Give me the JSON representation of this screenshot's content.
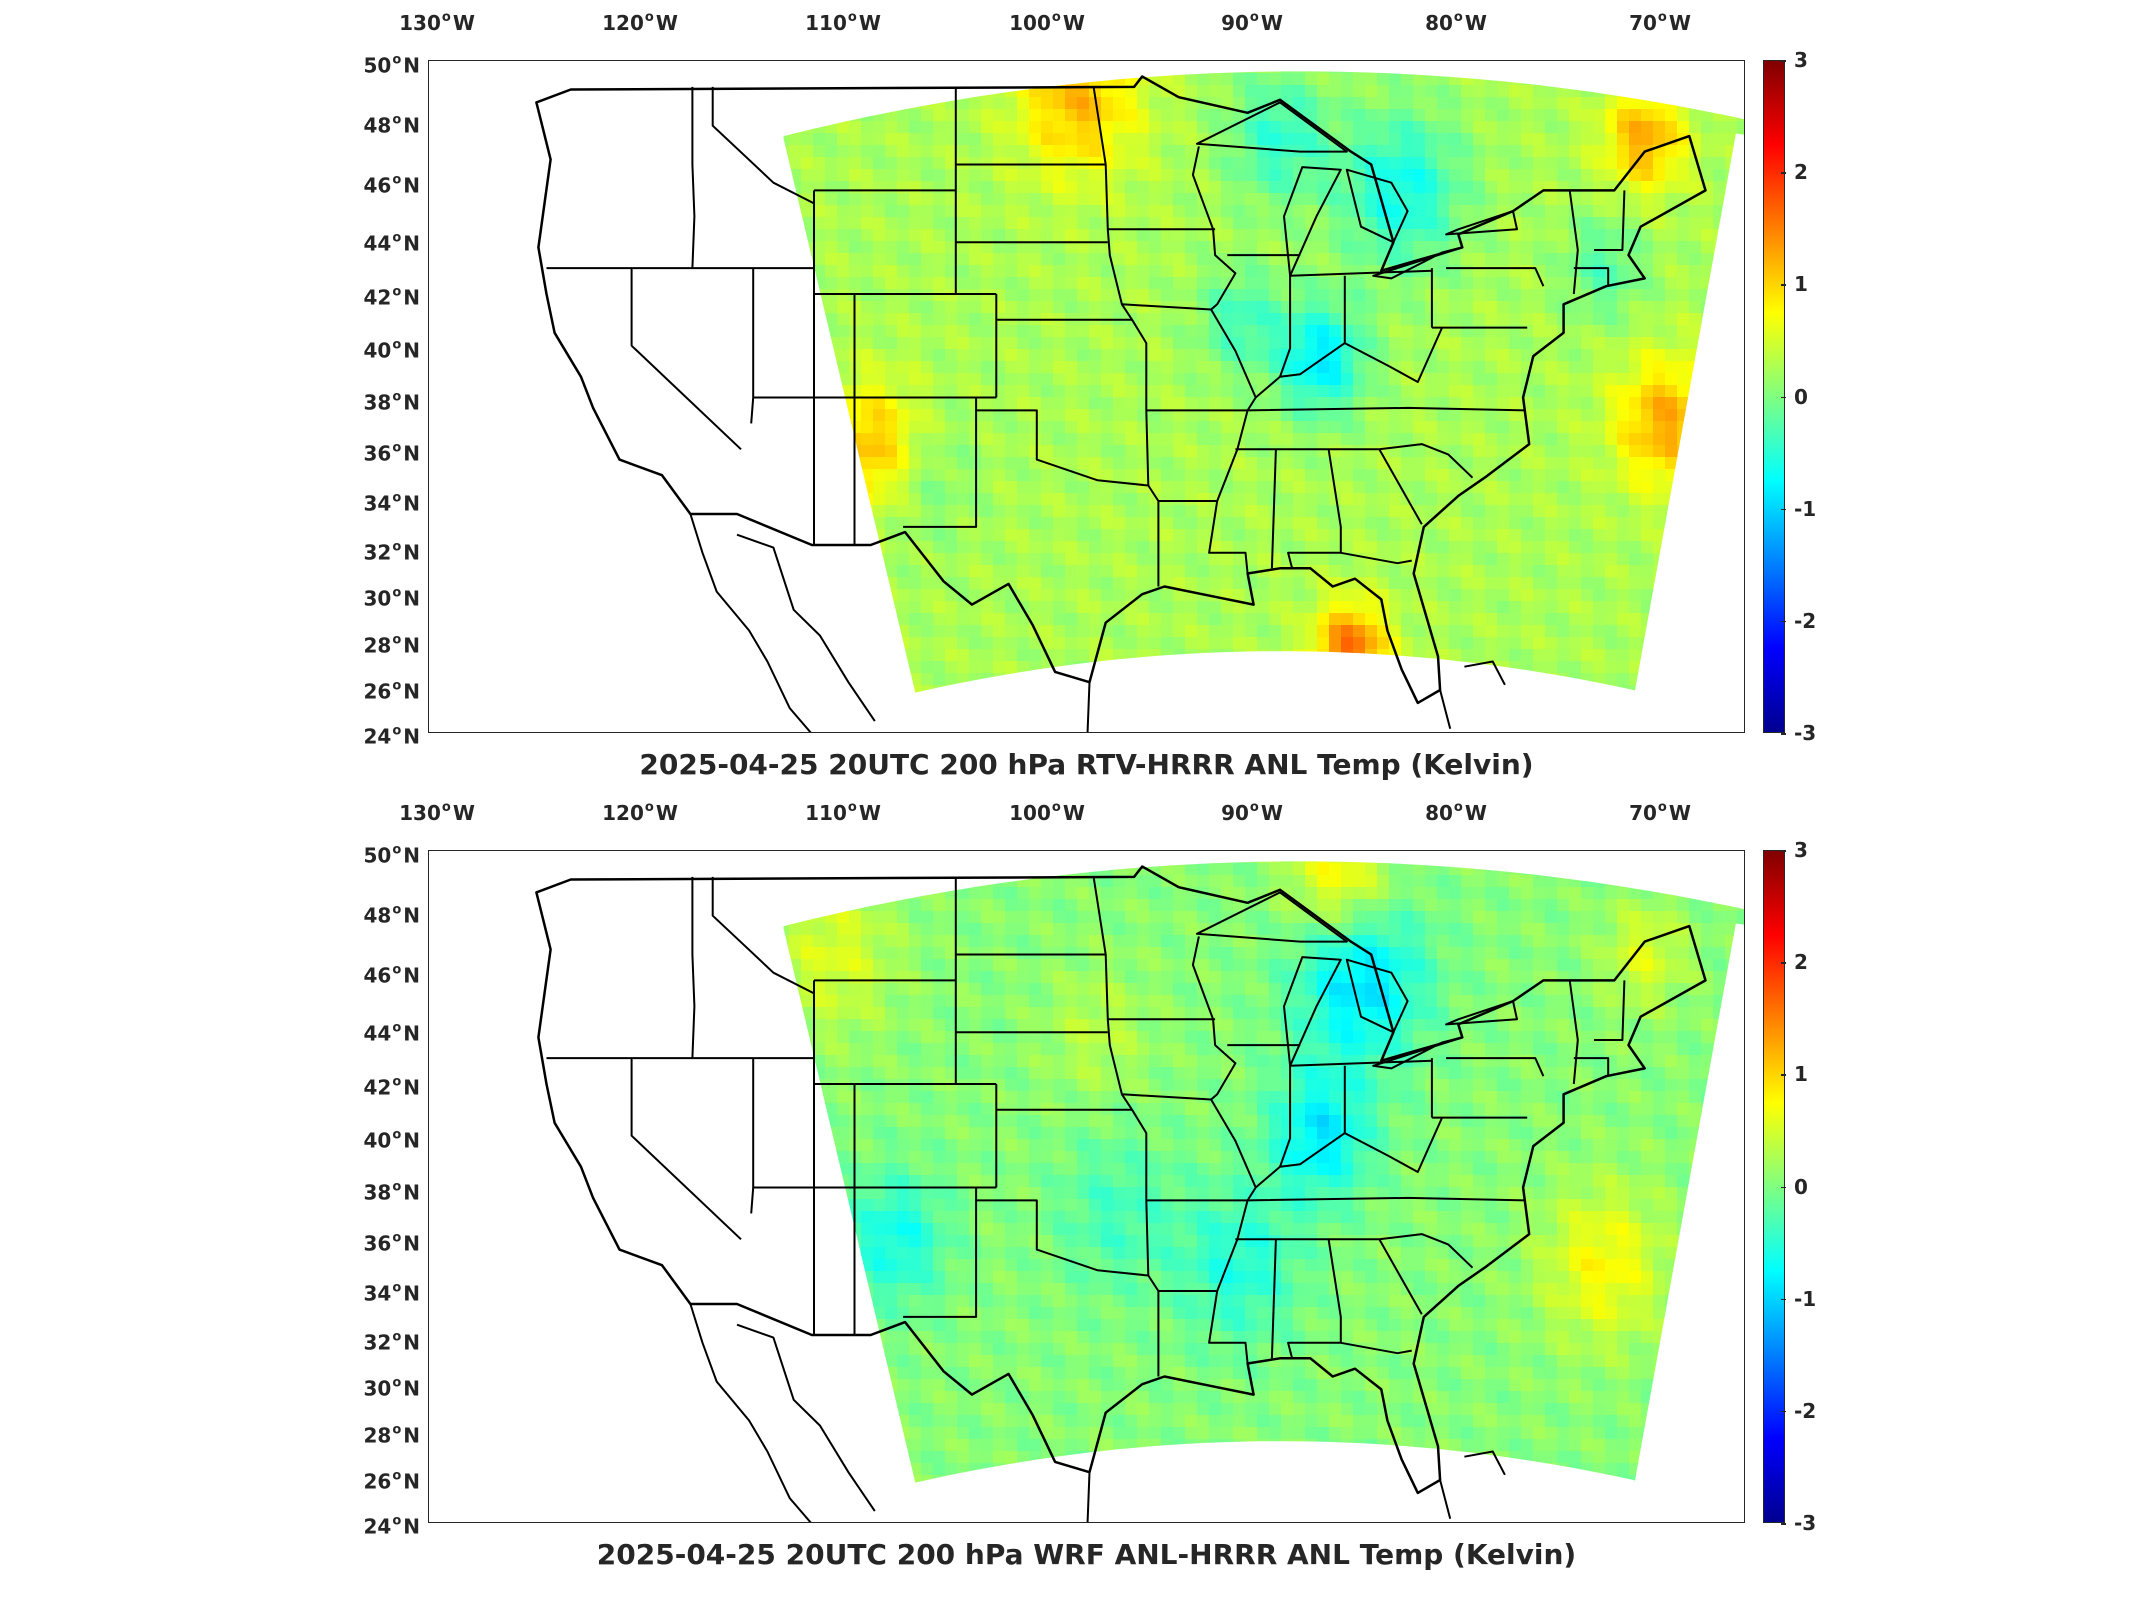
{
  "x_ticks": [
    {
      "deg": "130",
      "hemi": "W"
    },
    {
      "deg": "120",
      "hemi": "W"
    },
    {
      "deg": "110",
      "hemi": "W"
    },
    {
      "deg": "100",
      "hemi": "W"
    },
    {
      "deg": "90",
      "hemi": "W"
    },
    {
      "deg": "80",
      "hemi": "W"
    },
    {
      "deg": "70",
      "hemi": "W"
    }
  ],
  "y_ticks": [
    {
      "deg": "50",
      "hemi": "N"
    },
    {
      "deg": "48",
      "hemi": "N"
    },
    {
      "deg": "46",
      "hemi": "N"
    },
    {
      "deg": "44",
      "hemi": "N"
    },
    {
      "deg": "42",
      "hemi": "N"
    },
    {
      "deg": "40",
      "hemi": "N"
    },
    {
      "deg": "38",
      "hemi": "N"
    },
    {
      "deg": "36",
      "hemi": "N"
    },
    {
      "deg": "34",
      "hemi": "N"
    },
    {
      "deg": "32",
      "hemi": "N"
    },
    {
      "deg": "30",
      "hemi": "N"
    },
    {
      "deg": "28",
      "hemi": "N"
    },
    {
      "deg": "26",
      "hemi": "N"
    },
    {
      "deg": "24",
      "hemi": "N"
    }
  ],
  "colorbar": {
    "ticks": [
      "3",
      "2",
      "1",
      "0",
      "-1",
      "-2",
      "-3"
    ],
    "range": [
      -3,
      3
    ],
    "colormap": "jet"
  },
  "panels": [
    {
      "id": "top",
      "title": "2025-04-25 20UTC 200 hPa RTV-HRRR ANL Temp (Kelvin)"
    },
    {
      "id": "bottom",
      "title": "2025-04-25 20UTC 200 hPa WRF ANL-HRRR ANL Temp (Kelvin)"
    }
  ],
  "chart_data": [
    {
      "type": "heatmap",
      "title": "2025-04-25 20UTC 200 hPa RTV-HRRR ANL Temp (Kelvin)",
      "x_range": [
        "130 W",
        "65 W"
      ],
      "y_range": [
        "24 N",
        "50 N"
      ],
      "colorbar_range": [
        -3,
        3
      ],
      "colormap": "jet",
      "field_description_values": {
        "typical_range": [
          -1.2,
          1.5
        ],
        "warm_max_gulf": 1.4,
        "cold_min_ohio_valley": -1.1
      }
    },
    {
      "type": "heatmap",
      "title": "2025-04-25 20UTC 200 hPa WRF ANL-HRRR ANL Temp (Kelvin)",
      "x_range": [
        "130 W",
        "65 W"
      ],
      "y_range": [
        "24 N",
        "50 N"
      ],
      "colorbar_range": [
        -3,
        3
      ],
      "colormap": "jet",
      "field_description_values": {
        "typical_range": [
          -1.0,
          0.8
        ],
        "warm_max_north": 0.8,
        "cold_min_great_lakes": -1.0
      }
    }
  ]
}
